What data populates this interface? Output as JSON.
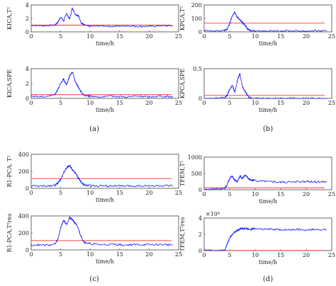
{
  "captions": [
    "(a)",
    "(b)",
    "(c)",
    "(d)"
  ],
  "chart_data": [
    {
      "type": "line",
      "panel": "a-top",
      "ylabel": "KICA,T²",
      "xlabel": "time/h",
      "xlim": [
        0,
        25
      ],
      "ylim": [
        0,
        4
      ],
      "xticks": [
        "0",
        "5",
        "10",
        "15",
        "20",
        "25"
      ],
      "yticks": [
        "0",
        "2",
        "4"
      ],
      "threshold": 1.0,
      "series": [
        {
          "color": "#1a1aff",
          "x": [
            0,
            2,
            4,
            4.5,
            5,
            5.5,
            6,
            6.5,
            7,
            7.5,
            8,
            8.5,
            9,
            10,
            12,
            14,
            16,
            18,
            20,
            22,
            24
          ],
          "y": [
            1.0,
            0.9,
            1.0,
            1.4,
            2.2,
            1.6,
            2.8,
            1.9,
            3.6,
            2.6,
            2.4,
            1.3,
            1.0,
            0.8,
            0.9,
            0.8,
            0.9,
            0.8,
            0.8,
            0.9,
            0.9
          ]
        }
      ]
    },
    {
      "type": "line",
      "panel": "b-top",
      "ylabel": "KPCA,T²",
      "xlabel": "time/h",
      "xlim": [
        0,
        25
      ],
      "ylim": [
        0,
        200
      ],
      "xticks": [
        "0",
        "5",
        "10",
        "15",
        "20",
        "25"
      ],
      "yticks": [
        "0",
        "100",
        "200"
      ],
      "threshold": 65,
      "series": [
        {
          "color": "#1a1aff",
          "x": [
            0,
            2,
            4,
            4.5,
            5,
            5.5,
            6,
            6.5,
            7,
            7.5,
            8,
            8.5,
            9,
            10,
            12,
            14,
            16,
            18,
            20,
            22,
            24
          ],
          "y": [
            8,
            6,
            10,
            20,
            60,
            120,
            145,
            110,
            90,
            70,
            50,
            20,
            10,
            8,
            7,
            6,
            8,
            7,
            6,
            8,
            6
          ]
        }
      ]
    },
    {
      "type": "line",
      "panel": "a-bottom",
      "ylabel": "KICA,SPE",
      "xlabel": "time/h",
      "xlim": [
        0,
        25
      ],
      "ylim": [
        0,
        4
      ],
      "xticks": [
        "0",
        "5",
        "10",
        "15",
        "20",
        "25"
      ],
      "yticks": [
        "0",
        "2",
        "4"
      ],
      "threshold": 0.5,
      "series": [
        {
          "color": "#1a1aff",
          "x": [
            0,
            2,
            4,
            4.5,
            5,
            5.5,
            6,
            6.5,
            7,
            7.5,
            8,
            8.5,
            9,
            10,
            12,
            14,
            16,
            18,
            20,
            22,
            24
          ],
          "y": [
            0.3,
            0.2,
            0.5,
            1.2,
            2.0,
            2.6,
            1.8,
            3.0,
            3.6,
            2.2,
            1.5,
            0.8,
            0.4,
            0.3,
            0.2,
            0.3,
            0.2,
            0.3,
            0.2,
            0.3,
            0.2
          ]
        }
      ]
    },
    {
      "type": "line",
      "panel": "b-bottom",
      "ylabel": "KPCA,SPE",
      "xlabel": "time/h",
      "xlim": [
        0,
        25
      ],
      "ylim": [
        0,
        0.5
      ],
      "xticks": [
        "0",
        "5",
        "10",
        "15",
        "20",
        "25"
      ],
      "yticks": [
        "0",
        "0.5"
      ],
      "threshold": 0.05,
      "series": [
        {
          "color": "#1a1aff",
          "x": [
            0,
            2,
            4,
            4.5,
            5,
            5.5,
            6,
            6.5,
            7,
            7.5,
            8,
            8.5,
            9,
            10,
            12,
            14,
            16,
            18,
            20,
            22,
            24
          ],
          "y": [
            0.0,
            0.0,
            0.01,
            0.05,
            0.15,
            0.22,
            0.1,
            0.3,
            0.42,
            0.2,
            0.12,
            0.05,
            0.01,
            0.0,
            0.0,
            0.0,
            0.0,
            0.0,
            0.0,
            0.0,
            0.0
          ]
        }
      ]
    },
    {
      "type": "line",
      "panel": "c-top",
      "ylabel": "R1-PCA, T²",
      "xlabel": "time/h",
      "xlim": [
        0,
        25
      ],
      "ylim": [
        0,
        400
      ],
      "xticks": [
        "0",
        "5",
        "10",
        "15",
        "20",
        "25"
      ],
      "yticks": [
        "0",
        "200",
        "400"
      ],
      "threshold": 115,
      "series": [
        {
          "color": "#1a1aff",
          "x": [
            0,
            2,
            4,
            4.5,
            5,
            5.5,
            6,
            6.5,
            7,
            7.5,
            8,
            8.5,
            9,
            10,
            12,
            14,
            16,
            18,
            20,
            22,
            24
          ],
          "y": [
            30,
            25,
            35,
            60,
            110,
            180,
            240,
            270,
            220,
            180,
            120,
            70,
            40,
            30,
            28,
            30,
            26,
            30,
            28,
            30,
            27
          ]
        }
      ]
    },
    {
      "type": "line",
      "panel": "d-top",
      "ylabel": "TFEM,T²",
      "xlabel": "time/h",
      "xlim": [
        0,
        25
      ],
      "ylim": [
        0,
        1000
      ],
      "xticks": [
        "0",
        "5",
        "10",
        "15",
        "20",
        "25"
      ],
      "yticks": [
        "0",
        "500",
        "1000"
      ],
      "threshold": 60,
      "series": [
        {
          "color": "#1a1aff",
          "x": [
            0,
            2,
            4,
            4.5,
            5,
            5.5,
            6,
            6.5,
            7,
            7.5,
            8,
            8.5,
            9,
            10,
            12,
            14,
            16,
            18,
            20,
            22,
            24
          ],
          "y": [
            20,
            20,
            30,
            150,
            350,
            420,
            300,
            250,
            420,
            350,
            450,
            380,
            300,
            280,
            260,
            240,
            230,
            240,
            250,
            240,
            250
          ]
        }
      ]
    },
    {
      "type": "line",
      "panel": "c-bottom",
      "ylabel": "R1-PCA,T²res",
      "xlabel": "time/h",
      "xlim": [
        0,
        25
      ],
      "ylim": [
        0,
        400
      ],
      "xticks": [
        "0",
        "5",
        "10",
        "15",
        "20",
        "25"
      ],
      "yticks": [
        "0",
        "200",
        "400"
      ],
      "threshold": 110,
      "series": [
        {
          "color": "#1a1aff",
          "x": [
            0,
            2,
            4,
            4.5,
            5,
            5.5,
            6,
            6.5,
            7,
            7.5,
            8,
            8.5,
            9,
            10,
            12,
            14,
            16,
            18,
            20,
            22,
            24
          ],
          "y": [
            60,
            55,
            65,
            120,
            260,
            350,
            300,
            380,
            360,
            310,
            250,
            150,
            90,
            70,
            60,
            65,
            58,
            62,
            60,
            63,
            58
          ]
        }
      ]
    },
    {
      "type": "line",
      "panel": "d-bottom",
      "ylabel": "TFEM,T²res",
      "xlabel": "time/h",
      "xlim": [
        0,
        25
      ],
      "ylim": [
        0,
        4
      ],
      "yexp": "×10⁴",
      "xticks": [
        "0",
        "5",
        "10",
        "15",
        "20",
        "25"
      ],
      "yticks": [
        "0",
        "2",
        "4"
      ],
      "threshold": 0.02,
      "series": [
        {
          "color": "#1a1aff",
          "x": [
            0,
            2,
            4,
            4.5,
            5,
            5.5,
            6,
            6.5,
            7,
            7.5,
            8,
            9,
            10,
            12,
            14,
            16,
            18,
            20,
            22,
            24
          ],
          "y": [
            0,
            0,
            0,
            0.8,
            1.5,
            2.0,
            2.3,
            2.5,
            2.6,
            2.7,
            2.7,
            2.6,
            2.7,
            2.6,
            2.6,
            2.55,
            2.6,
            2.55,
            2.6,
            2.55
          ]
        }
      ]
    }
  ]
}
